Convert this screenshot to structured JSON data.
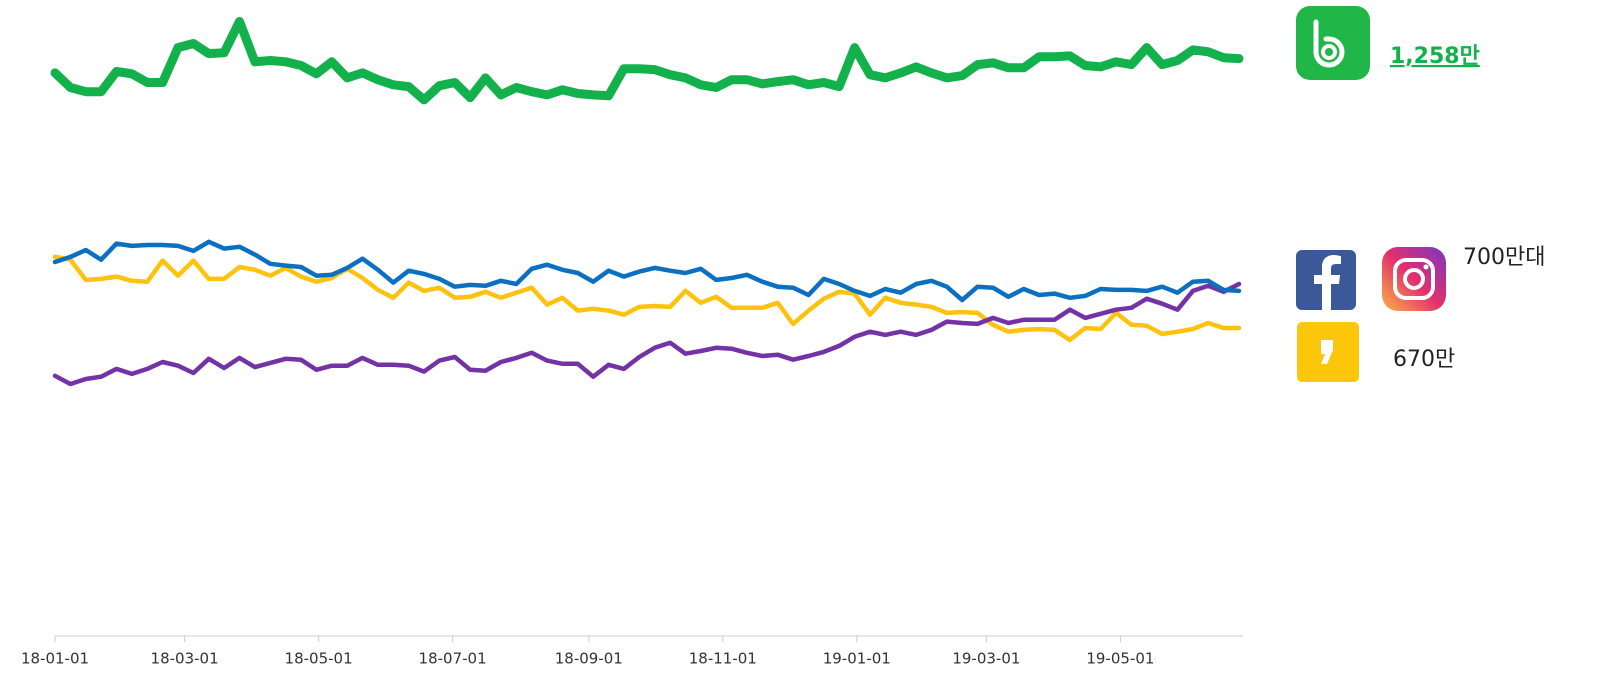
{
  "chart_data": {
    "type": "line",
    "x": [
      "18-01-01",
      "18-01-08",
      "18-01-15",
      "18-01-22",
      "18-01-29",
      "18-02-05",
      "18-02-12",
      "18-02-19",
      "18-02-26",
      "18-03-05",
      "18-03-12",
      "18-03-19",
      "18-03-26",
      "18-04-02",
      "18-04-09",
      "18-04-16",
      "18-04-23",
      "18-04-30",
      "18-05-07",
      "18-05-14",
      "18-05-21",
      "18-05-28",
      "18-06-04",
      "18-06-11",
      "18-06-18",
      "18-06-25",
      "18-07-02",
      "18-07-09",
      "18-07-16",
      "18-07-23",
      "18-07-30",
      "18-08-06",
      "18-08-13",
      "18-08-20",
      "18-08-27",
      "18-09-03",
      "18-09-10",
      "18-09-17",
      "18-09-24",
      "18-10-01",
      "18-10-08",
      "18-10-15",
      "18-10-22",
      "18-10-29",
      "18-11-05",
      "18-11-12",
      "18-11-19",
      "18-11-26",
      "18-12-03",
      "18-12-10",
      "18-12-17",
      "18-12-24",
      "18-12-31",
      "19-01-07",
      "19-01-14",
      "19-01-21",
      "19-01-28",
      "19-02-04",
      "19-02-11",
      "19-02-18",
      "19-02-25",
      "19-03-04",
      "19-03-11",
      "19-03-18",
      "19-03-25",
      "19-04-01",
      "19-04-08",
      "19-04-15",
      "19-04-22",
      "19-04-29",
      "19-05-06",
      "19-05-13",
      "19-05-20",
      "19-05-27",
      "19-06-03",
      "19-06-10",
      "19-06-17",
      "19-06-24"
    ],
    "series": [
      {
        "color": "#13b14b",
        "values": [
          1227,
          1195,
          1186,
          1186,
          1230,
          1225,
          1206,
          1206,
          1282,
          1291,
          1269,
          1271,
          1339,
          1251,
          1254,
          1251,
          1243,
          1225,
          1251,
          1216,
          1227,
          1212,
          1201,
          1197,
          1168,
          1199,
          1206,
          1173,
          1216,
          1179,
          1195,
          1186,
          1179,
          1190,
          1182,
          1179,
          1177,
          1236,
          1236,
          1234,
          1223,
          1216,
          1201,
          1195,
          1212,
          1212,
          1203,
          1208,
          1212,
          1201,
          1206,
          1197,
          1282,
          1223,
          1216,
          1227,
          1240,
          1227,
          1216,
          1221,
          1245,
          1249,
          1238,
          1238,
          1262,
          1262,
          1264,
          1243,
          1240,
          1251,
          1245,
          1282,
          1245,
          1254,
          1277,
          1273,
          1260,
          1258
        ]
      },
      {
        "color": "#0b70c1",
        "values": [
          815,
          826,
          841,
          820,
          855,
          850,
          852,
          852,
          850,
          839,
          859,
          844,
          848,
          831,
          811,
          807,
          804,
          785,
          787,
          802,
          822,
          798,
          770,
          796,
          789,
          778,
          761,
          765,
          763,
          774,
          767,
          800,
          809,
          798,
          791,
          772,
          796,
          783,
          794,
          802,
          796,
          791,
          800,
          776,
          780,
          787,
          772,
          761,
          759,
          743,
          778,
          767,
          752,
          741,
          756,
          748,
          767,
          774,
          761,
          732,
          761,
          759,
          739,
          756,
          743,
          746,
          737,
          741,
          756,
          754,
          754,
          752,
          761,
          748,
          772,
          774,
          754,
          752
        ]
      },
      {
        "color": "#ffc20e",
        "values": [
          826,
          820,
          776,
          778,
          783,
          774,
          772,
          818,
          785,
          818,
          778,
          778,
          804,
          798,
          785,
          802,
          783,
          772,
          780,
          800,
          780,
          754,
          737,
          770,
          752,
          759,
          737,
          739,
          750,
          737,
          748,
          759,
          722,
          737,
          709,
          713,
          709,
          700,
          717,
          719,
          717,
          752,
          726,
          739,
          715,
          715,
          715,
          726,
          680,
          709,
          735,
          750,
          746,
          700,
          737,
          726,
          722,
          717,
          704,
          706,
          704,
          678,
          663,
          667,
          669,
          667,
          645,
          671,
          669,
          704,
          678,
          676,
          658,
          663,
          669,
          682,
          671,
          671
        ]
      },
      {
        "color": "#7333a6",
        "values": [
          567,
          549,
          560,
          565,
          582,
          571,
          582,
          597,
          589,
          573,
          604,
          584,
          606,
          586,
          595,
          604,
          602,
          580,
          589,
          589,
          606,
          591,
          591,
          589,
          576,
          600,
          608,
          580,
          578,
          597,
          606,
          617,
          600,
          593,
          593,
          565,
          591,
          582,
          608,
          628,
          639,
          615,
          621,
          628,
          626,
          617,
          610,
          613,
          602,
          610,
          619,
          632,
          652,
          663,
          656,
          663,
          656,
          667,
          685,
          682,
          680,
          693,
          682,
          689,
          689,
          689,
          711,
          693,
          702,
          711,
          715,
          735,
          724,
          711,
          752,
          763,
          750,
          767
        ]
      }
    ],
    "xlim": [
      "18-01-01",
      "19-06-24"
    ],
    "xticks": [
      "18-01-01",
      "18-03-01",
      "18-05-01",
      "18-07-01",
      "18-09-01",
      "18-11-01",
      "19-01-01",
      "19-03-01",
      "19-05-01"
    ],
    "ylim": [
      0,
      1340
    ],
    "annotations": [
      "1,258만",
      "700만대",
      "670만"
    ]
  }
}
